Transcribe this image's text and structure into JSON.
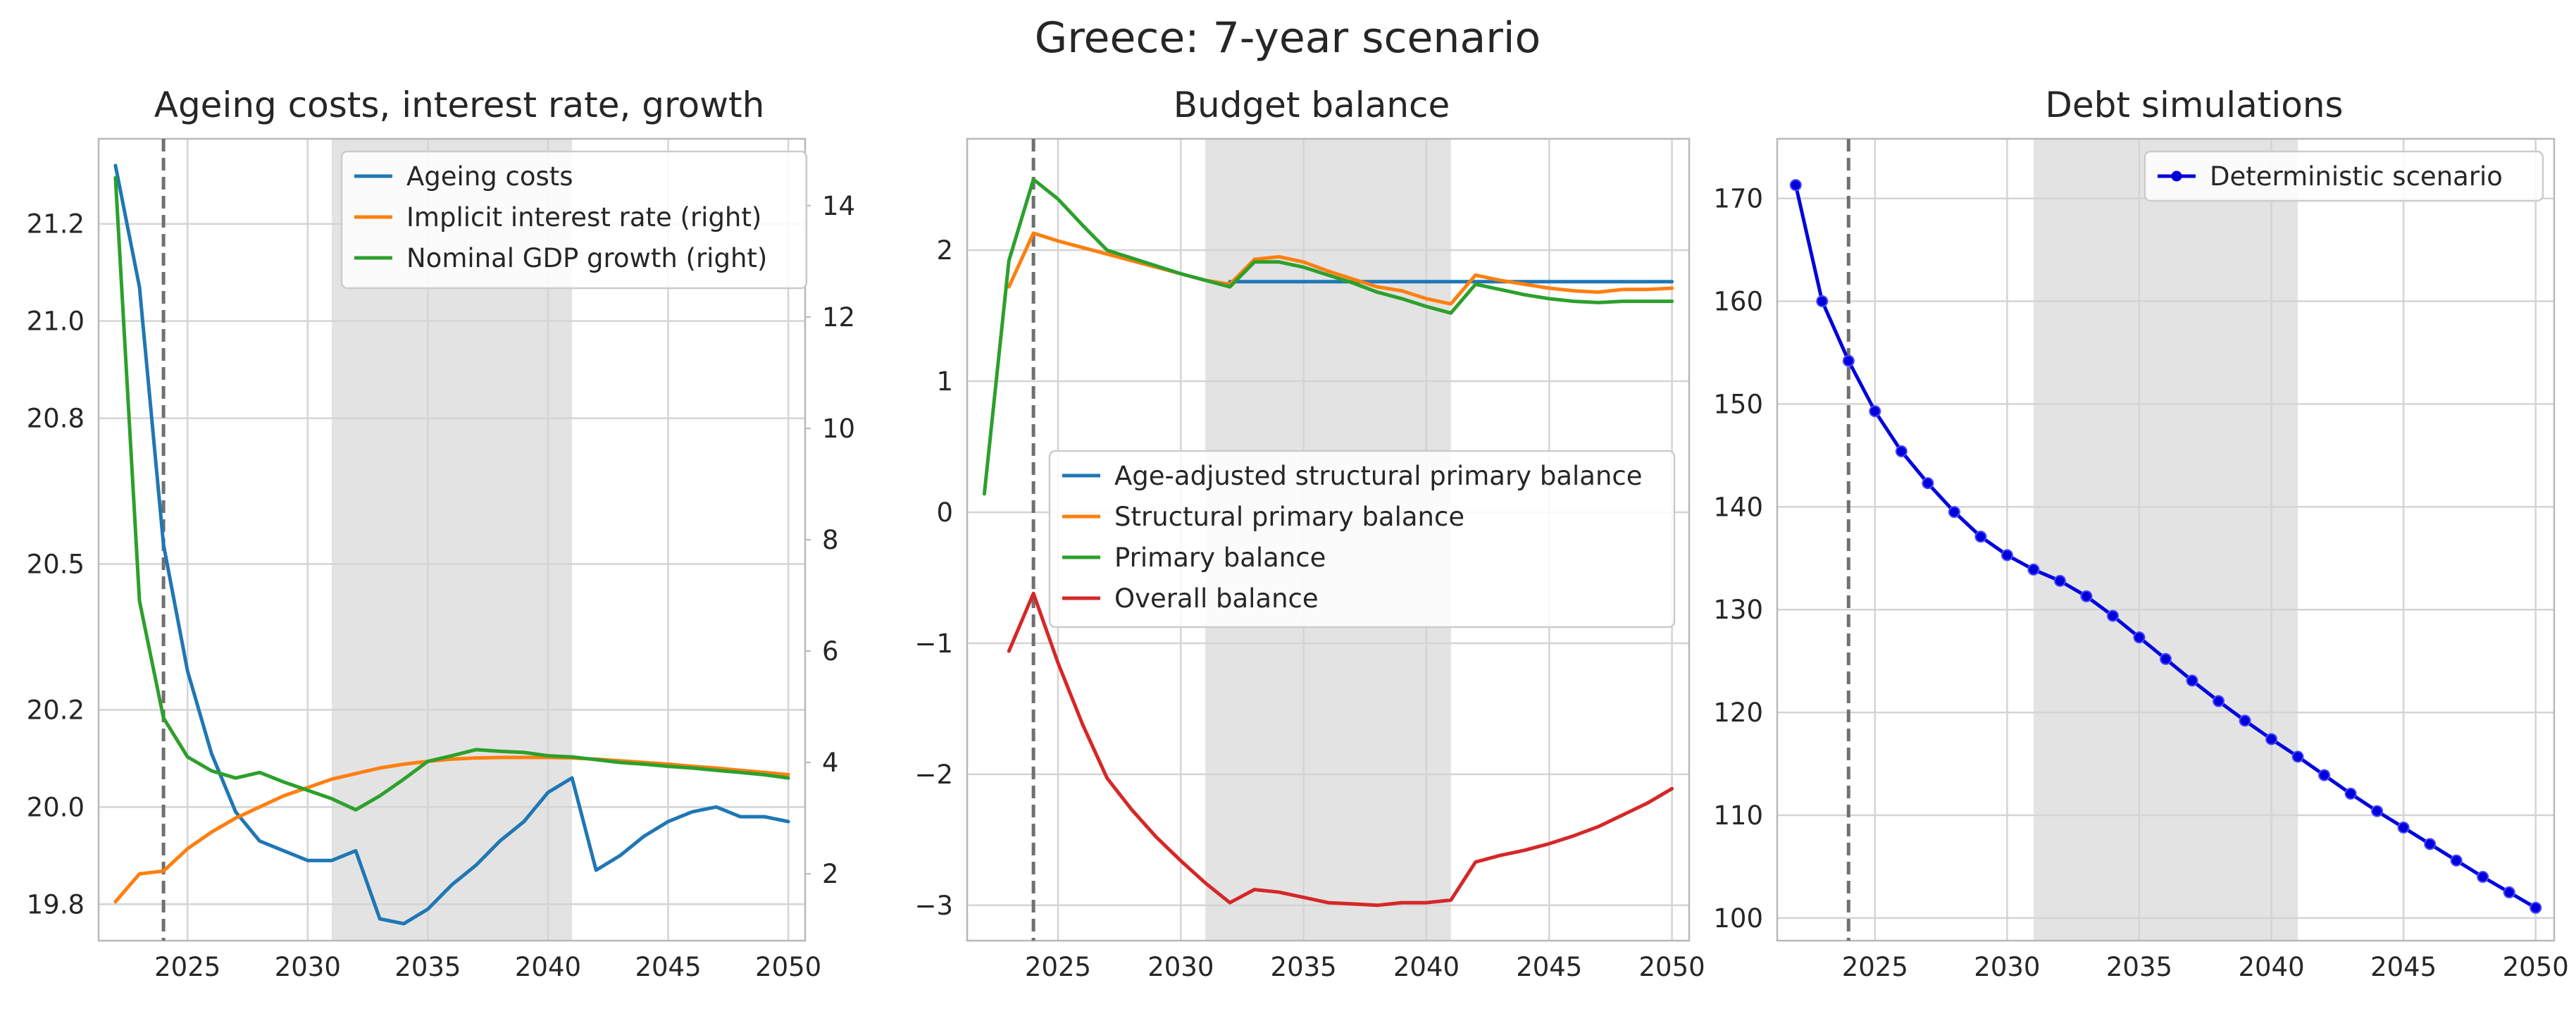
{
  "figure_title": "Greece: 7-year scenario",
  "colors": {
    "blue": "#1f77b4",
    "orange": "#ff7f0e",
    "green": "#2ca02c",
    "red": "#d62728",
    "deterministic": "#0000dd",
    "shade": "#e3e3e3",
    "grid": "#d4d4d4",
    "spine": "#b8b8b8",
    "vline": "#707070"
  },
  "chart_data": [
    {
      "type": "line",
      "title": "Ageing costs, interest rate, growth",
      "xlim": [
        2021.3,
        2050.7
      ],
      "ylim": [
        19.725,
        21.375
      ],
      "y2lim": [
        0.8,
        15.2
      ],
      "x_ticks": [
        2025,
        2030,
        2035,
        2040,
        2045,
        2050
      ],
      "y_ticks": [
        19.8,
        20.0,
        20.2,
        20.5,
        20.8,
        21.0,
        21.2
      ],
      "y_tick_labels": [
        "19.8",
        "20.0",
        "20.2",
        "20.5",
        "20.8",
        "21.0",
        "21.2"
      ],
      "y2_ticks": [
        2,
        4,
        6,
        8,
        10,
        12,
        14
      ],
      "y2_tick_labels": [
        "2",
        "4",
        "6",
        "8",
        "10",
        "12",
        "14"
      ],
      "shade": [
        2031,
        2041
      ],
      "vline": 2024,
      "grid": true,
      "legend_position": "top-right",
      "x": [
        2022,
        2023,
        2024,
        2025,
        2026,
        2027,
        2028,
        2029,
        2030,
        2031,
        2032,
        2033,
        2034,
        2035,
        2036,
        2037,
        2038,
        2039,
        2040,
        2041,
        2042,
        2043,
        2044,
        2045,
        2046,
        2047,
        2048,
        2049,
        2050
      ],
      "series": [
        {
          "name": "Ageing costs",
          "axis": "left",
          "color": "#1f77b4",
          "values": [
            21.32,
            21.07,
            20.54,
            20.28,
            20.11,
            19.99,
            19.93,
            19.91,
            19.89,
            19.89,
            19.91,
            19.77,
            19.76,
            19.79,
            19.84,
            19.88,
            19.93,
            19.97,
            20.03,
            20.06,
            19.87,
            19.9,
            19.94,
            19.97,
            19.99,
            20.0,
            19.98,
            19.98,
            19.97
          ]
        },
        {
          "name": "Implicit interest rate (right)",
          "axis": "right",
          "color": "#ff7f0e",
          "values": [
            1.5,
            2.0,
            2.05,
            2.45,
            2.75,
            3.0,
            3.2,
            3.4,
            3.55,
            3.7,
            3.8,
            3.9,
            3.97,
            4.02,
            4.06,
            4.08,
            4.09,
            4.09,
            4.09,
            4.08,
            4.06,
            4.03,
            4.0,
            3.97,
            3.93,
            3.9,
            3.86,
            3.82,
            3.78
          ]
        },
        {
          "name": "Nominal GDP growth (right)",
          "axis": "right",
          "color": "#2ca02c",
          "values": [
            14.5,
            6.9,
            4.8,
            4.1,
            3.85,
            3.72,
            3.82,
            3.65,
            3.5,
            3.35,
            3.15,
            3.4,
            3.7,
            4.02,
            4.12,
            4.23,
            4.2,
            4.18,
            4.12,
            4.1,
            4.05,
            4.0,
            3.97,
            3.93,
            3.9,
            3.86,
            3.82,
            3.78,
            3.72
          ]
        }
      ]
    },
    {
      "type": "line",
      "title": "Budget balance",
      "xlim": [
        2021.3,
        2050.7
      ],
      "ylim": [
        -3.27,
        2.85
      ],
      "x_ticks": [
        2025,
        2030,
        2035,
        2040,
        2045,
        2050
      ],
      "y_ticks": [
        -3,
        -2,
        -1,
        0,
        1,
        2
      ],
      "y_tick_labels": [
        "−3",
        "−2",
        "−1",
        "0",
        "1",
        "2"
      ],
      "shade": [
        2031,
        2041
      ],
      "vline": 2024,
      "grid": true,
      "legend_position": "center-right",
      "x": [
        2022,
        2023,
        2024,
        2025,
        2026,
        2027,
        2028,
        2029,
        2030,
        2031,
        2032,
        2033,
        2034,
        2035,
        2036,
        2037,
        2038,
        2039,
        2040,
        2041,
        2042,
        2043,
        2044,
        2045,
        2046,
        2047,
        2048,
        2049,
        2050
      ],
      "series": [
        {
          "name": "Age-adjusted structural primary balance",
          "color": "#1f77b4",
          "x": [
            2032,
            2033,
            2034,
            2035,
            2036,
            2037,
            2038,
            2039,
            2040,
            2041,
            2042,
            2043,
            2044,
            2045,
            2046,
            2047,
            2048,
            2049,
            2050
          ],
          "values": [
            1.76,
            1.76,
            1.76,
            1.76,
            1.76,
            1.76,
            1.76,
            1.76,
            1.76,
            1.76,
            1.76,
            1.76,
            1.76,
            1.76,
            1.76,
            1.76,
            1.76,
            1.76,
            1.76
          ]
        },
        {
          "name": "Structural primary balance",
          "color": "#ff7f0e",
          "x": [
            2023,
            2024,
            2025,
            2026,
            2027,
            2028,
            2029,
            2030,
            2031,
            2032,
            2033,
            2034,
            2035,
            2036,
            2037,
            2038,
            2039,
            2040,
            2041,
            2042,
            2043,
            2044,
            2045,
            2046,
            2047,
            2048,
            2049,
            2050
          ],
          "values": [
            1.72,
            2.13,
            2.07,
            2.02,
            1.97,
            1.92,
            1.87,
            1.82,
            1.77,
            1.74,
            1.93,
            1.95,
            1.91,
            1.84,
            1.78,
            1.72,
            1.69,
            1.63,
            1.59,
            1.81,
            1.77,
            1.74,
            1.71,
            1.69,
            1.68,
            1.7,
            1.7,
            1.71
          ]
        },
        {
          "name": "Primary balance",
          "color": "#2ca02c",
          "values": [
            0.14,
            1.92,
            2.54,
            2.39,
            2.19,
            2.0,
            1.94,
            1.88,
            1.82,
            1.77,
            1.72,
            1.91,
            1.91,
            1.87,
            1.81,
            1.75,
            1.68,
            1.63,
            1.57,
            1.52,
            1.74,
            1.7,
            1.66,
            1.63,
            1.61,
            1.6,
            1.61,
            1.61,
            1.61
          ]
        },
        {
          "name": "Overall balance",
          "color": "#d62728",
          "x": [
            2023,
            2024,
            2025,
            2026,
            2027,
            2028,
            2029,
            2030,
            2031,
            2032,
            2033,
            2034,
            2035,
            2036,
            2037,
            2038,
            2039,
            2040,
            2041,
            2042,
            2043,
            2044,
            2045,
            2046,
            2047,
            2048,
            2049,
            2050
          ],
          "values": [
            -1.06,
            -0.62,
            -1.15,
            -1.62,
            -2.03,
            -2.27,
            -2.48,
            -2.66,
            -2.83,
            -2.98,
            -2.88,
            -2.9,
            -2.94,
            -2.98,
            -2.99,
            -3.0,
            -2.98,
            -2.98,
            -2.96,
            -2.67,
            -2.62,
            -2.58,
            -2.53,
            -2.47,
            -2.4,
            -2.31,
            -2.22,
            -2.11
          ]
        }
      ]
    },
    {
      "type": "line",
      "title": "Debt simulations",
      "xlim": [
        2021.3,
        2050.7
      ],
      "ylim": [
        97.8,
        175.8
      ],
      "x_ticks": [
        2025,
        2030,
        2035,
        2040,
        2045,
        2050
      ],
      "y_ticks": [
        100,
        110,
        120,
        130,
        140,
        150,
        160,
        170
      ],
      "y_tick_labels": [
        "100",
        "110",
        "120",
        "130",
        "140",
        "150",
        "160",
        "170"
      ],
      "shade": [
        2031,
        2041
      ],
      "vline": 2024,
      "grid": true,
      "legend_position": "top-right",
      "x": [
        2022,
        2023,
        2024,
        2025,
        2026,
        2027,
        2028,
        2029,
        2030,
        2031,
        2032,
        2033,
        2034,
        2035,
        2036,
        2037,
        2038,
        2039,
        2040,
        2041,
        2042,
        2043,
        2044,
        2045,
        2046,
        2047,
        2048,
        2049,
        2050
      ],
      "series": [
        {
          "name": "Deterministic scenario",
          "color": "#0000dd",
          "markers": true,
          "values": [
            171.3,
            160.0,
            154.2,
            149.3,
            145.4,
            142.3,
            139.5,
            137.1,
            135.3,
            133.9,
            132.8,
            131.3,
            129.4,
            127.3,
            125.2,
            123.1,
            121.1,
            119.2,
            117.4,
            115.7,
            113.9,
            112.1,
            110.4,
            108.8,
            107.2,
            105.6,
            104.0,
            102.5,
            101.0
          ]
        }
      ]
    }
  ]
}
